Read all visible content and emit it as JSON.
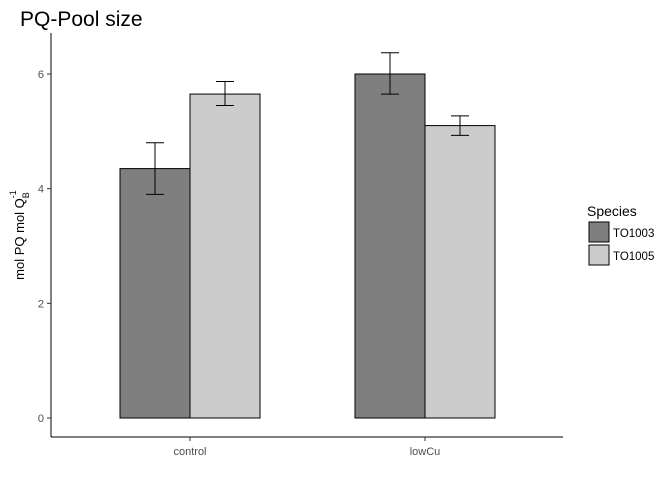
{
  "chart_data": {
    "type": "bar",
    "title": "PQ-Pool size",
    "categories": [
      "control",
      "lowCu"
    ],
    "series": [
      {
        "name": "TO1003",
        "values": [
          4.35,
          6.0
        ],
        "err_low": [
          3.9,
          5.65
        ],
        "err_high": [
          4.8,
          6.37
        ],
        "color": "#7f7f7f"
      },
      {
        "name": "TO1005",
        "values": [
          5.65,
          5.1
        ],
        "err_low": [
          5.45,
          4.93
        ],
        "err_high": [
          5.87,
          5.27
        ],
        "color": "#cccccc"
      }
    ],
    "xlabel": "",
    "ylabel": {
      "main": "mol PQ mol  Q",
      "sub": "B",
      "sup": "-1"
    },
    "ylim": [
      0,
      6.7
    ],
    "yticks": [
      0,
      2,
      4,
      6
    ],
    "grid": false,
    "legend": {
      "title": "Species",
      "position": "right"
    }
  }
}
